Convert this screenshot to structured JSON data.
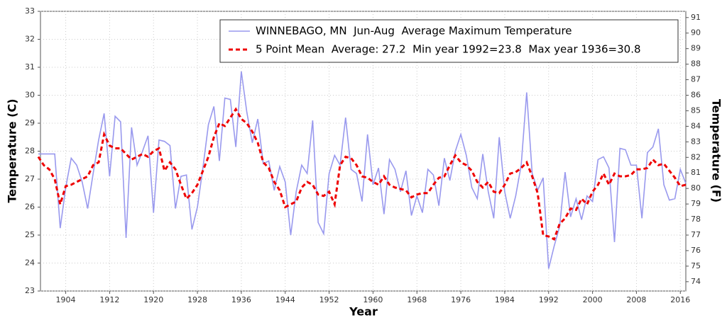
{
  "chart_data": {
    "type": "line",
    "xlabel": "Year",
    "ylabel": "Temperature (C)",
    "y2label": "Temperature (F)",
    "x": [
      1899,
      1900,
      1901,
      1902,
      1903,
      1904,
      1905,
      1906,
      1907,
      1908,
      1909,
      1910,
      1911,
      1912,
      1913,
      1914,
      1915,
      1916,
      1917,
      1918,
      1919,
      1920,
      1921,
      1922,
      1923,
      1924,
      1925,
      1926,
      1927,
      1928,
      1929,
      1930,
      1931,
      1932,
      1933,
      1934,
      1935,
      1936,
      1937,
      1938,
      1939,
      1940,
      1941,
      1942,
      1943,
      1944,
      1945,
      1946,
      1947,
      1948,
      1949,
      1950,
      1951,
      1952,
      1953,
      1954,
      1955,
      1956,
      1957,
      1958,
      1959,
      1960,
      1961,
      1962,
      1963,
      1964,
      1965,
      1966,
      1967,
      1968,
      1969,
      1970,
      1971,
      1972,
      1973,
      1974,
      1975,
      1976,
      1977,
      1978,
      1979,
      1980,
      1981,
      1982,
      1983,
      1984,
      1985,
      1986,
      1987,
      1988,
      1989,
      1990,
      1991,
      1992,
      1993,
      1994,
      1995,
      1996,
      1997,
      1998,
      1999,
      2000,
      2001,
      2002,
      2003,
      2004,
      2005,
      2006,
      2007,
      2008,
      2009,
      2010,
      2011,
      2012,
      2013,
      2014,
      2015,
      2016,
      2017
    ],
    "series": [
      {
        "name": "WINNEBAGO, MN  Jun-Aug  Average Maximum Temperature",
        "color": "#9999ee",
        "dashed": false,
        "values": [
          27.9,
          27.9,
          27.9,
          27.9,
          25.25,
          26.7,
          27.75,
          27.5,
          26.9,
          25.95,
          27.2,
          28.4,
          29.35,
          27.1,
          29.25,
          29.05,
          24.9,
          28.85,
          27.5,
          28.0,
          28.55,
          25.8,
          28.4,
          28.35,
          28.2,
          25.95,
          27.1,
          27.15,
          25.2,
          26.0,
          27.4,
          28.95,
          29.6,
          27.65,
          29.9,
          29.85,
          28.15,
          30.85,
          29.4,
          28.3,
          29.15,
          27.55,
          27.65,
          26.6,
          27.45,
          26.9,
          25.0,
          26.55,
          27.5,
          27.2,
          29.1,
          25.45,
          25.05,
          27.2,
          27.85,
          27.5,
          29.2,
          27.35,
          27.2,
          26.2,
          28.6,
          26.8,
          27.4,
          25.75,
          27.7,
          27.35,
          26.55,
          27.3,
          25.7,
          26.4,
          25.8,
          27.35,
          27.15,
          26.05,
          27.75,
          26.95,
          28.0,
          28.6,
          27.85,
          26.7,
          26.3,
          27.9,
          26.55,
          25.6,
          28.5,
          26.55,
          25.6,
          26.4,
          27.5,
          30.1,
          27.2,
          26.6,
          27.05,
          23.8,
          24.6,
          25.3,
          27.25,
          25.65,
          26.3,
          25.55,
          26.4,
          26.2,
          27.7,
          27.8,
          27.4,
          24.75,
          28.1,
          28.05,
          27.5,
          27.5,
          25.6,
          27.95,
          28.15,
          28.8,
          26.8,
          26.25,
          26.3,
          27.35,
          26.85
        ]
      },
      {
        "name": "5 Point Mean  Average: 27.2  Min year 1992=23.8  Max year 1936=30.8",
        "color": "#ee0000",
        "dashed": true,
        "values": [
          27.8,
          27.5,
          27.35,
          27.0,
          26.1,
          26.75,
          26.8,
          26.9,
          27.0,
          27.1,
          27.5,
          27.6,
          28.6,
          28.2,
          28.1,
          28.1,
          27.9,
          27.7,
          27.8,
          27.9,
          27.8,
          28.0,
          28.1,
          27.3,
          27.6,
          27.35,
          26.8,
          26.3,
          26.5,
          26.8,
          27.3,
          27.8,
          28.5,
          29.0,
          28.9,
          29.2,
          29.5,
          29.15,
          29.0,
          28.7,
          28.3,
          27.6,
          27.4,
          26.9,
          26.6,
          26.0,
          26.1,
          26.2,
          26.7,
          26.9,
          26.8,
          26.45,
          26.4,
          26.55,
          26.1,
          27.5,
          27.8,
          27.75,
          27.5,
          27.1,
          27.05,
          26.9,
          26.8,
          27.1,
          26.8,
          26.7,
          26.65,
          26.6,
          26.35,
          26.45,
          26.5,
          26.5,
          26.8,
          27.05,
          27.1,
          27.5,
          27.85,
          27.6,
          27.5,
          27.3,
          26.9,
          26.7,
          26.9,
          26.55,
          26.5,
          26.8,
          27.2,
          27.25,
          27.4,
          27.6,
          27.1,
          26.5,
          25.0,
          24.95,
          24.85,
          25.4,
          25.6,
          25.95,
          25.9,
          26.3,
          26.1,
          26.55,
          26.8,
          27.2,
          26.8,
          27.2,
          27.1,
          27.1,
          27.15,
          27.35,
          27.35,
          27.4,
          27.7,
          27.5,
          27.55,
          27.3,
          27.05,
          26.75,
          26.8
        ]
      }
    ],
    "xlim": [
      1899.4,
      2017
    ],
    "xticks": [
      1904,
      1912,
      1920,
      1928,
      1936,
      1944,
      1952,
      1960,
      1968,
      1976,
      1984,
      1992,
      2000,
      2008,
      2016
    ],
    "ylim": [
      23,
      33
    ],
    "yticks": [
      23,
      24,
      25,
      26,
      27,
      28,
      29,
      30,
      31,
      32,
      33
    ],
    "y2lim": [
      73.4,
      91.4
    ],
    "y2ticks": [
      74,
      75,
      76,
      77,
      78,
      79,
      80,
      81,
      82,
      83,
      84,
      85,
      86,
      87,
      88,
      89,
      90,
      91
    ],
    "grid": true,
    "legend": "top right"
  }
}
